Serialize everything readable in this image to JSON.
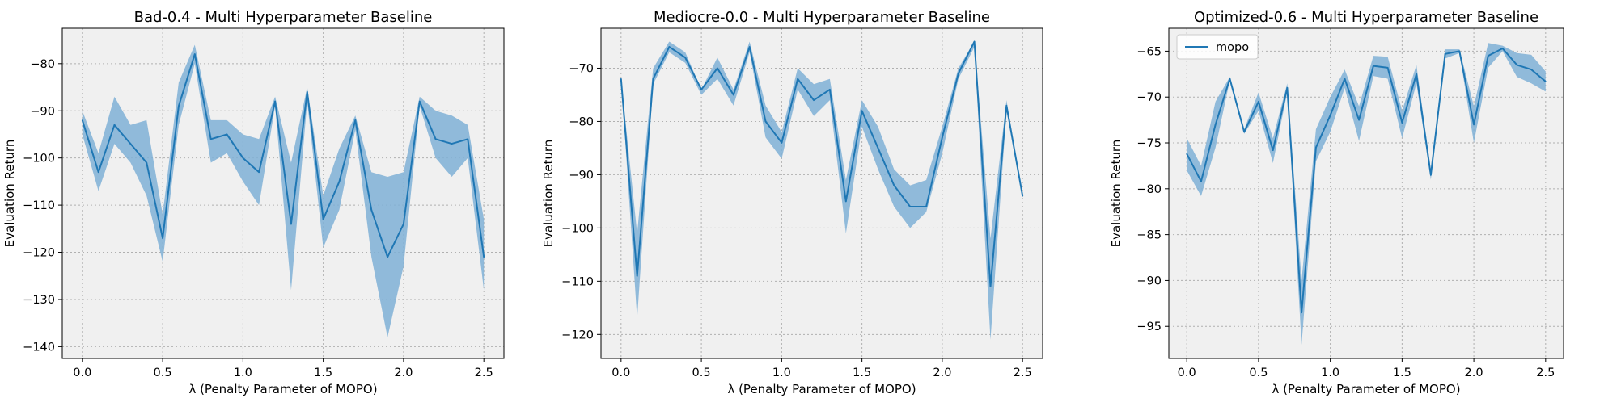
{
  "colors": {
    "line": "#1f77b4",
    "band": "#7fb0d6",
    "panel_bg": "#f0f0f0",
    "grid": "#b0b0b0"
  },
  "legend": {
    "label": "mopo",
    "location": "upper-left",
    "panel": 2
  },
  "chart_data": [
    {
      "type": "line",
      "title": "Bad-0.4 - Multi Hyperparameter Baseline",
      "xlabel": "λ (Penalty Parameter of MOPO)",
      "ylabel": "Evaluation Return",
      "xlim": [
        -0.125,
        2.625
      ],
      "ylim": [
        -142.5,
        -72.5
      ],
      "xticks": [
        "0.0",
        "0.5",
        "1.0",
        "1.5",
        "2.0",
        "2.5"
      ],
      "yticks": [
        -80,
        -90,
        -100,
        -110,
        -120,
        -130,
        -140
      ],
      "grid": true,
      "series": [
        {
          "name": "mopo",
          "x": [
            0.0,
            0.1,
            0.2,
            0.3,
            0.4,
            0.5,
            0.6,
            0.7,
            0.8,
            0.9,
            1.0,
            1.1,
            1.2,
            1.3,
            1.4,
            1.5,
            1.6,
            1.7,
            1.8,
            1.9,
            2.0,
            2.1,
            2.2,
            2.3,
            2.4,
            2.5
          ],
          "y": [
            -92,
            -103,
            -93,
            -97,
            -101,
            -117,
            -89,
            -78,
            -96,
            -95,
            -100,
            -103,
            -88,
            -114,
            -86,
            -113,
            -105,
            -92,
            -111,
            -121,
            -114,
            -88,
            -96,
            -97,
            -96,
            -121
          ],
          "y_upper": [
            -90,
            -99,
            -87,
            -93,
            -92,
            -112,
            -84,
            -76,
            -92,
            -92,
            -95,
            -96,
            -87,
            -101,
            -85,
            -108,
            -98,
            -91,
            -103,
            -104,
            -103,
            -87,
            -90,
            -91,
            -93,
            -113
          ],
          "y_lower": [
            -95,
            -107,
            -97,
            -101,
            -108,
            -122,
            -93,
            -80,
            -101,
            -99,
            -105,
            -110,
            -89,
            -128,
            -88,
            -119,
            -111,
            -94,
            -121,
            -138,
            -123,
            -89,
            -100,
            -104,
            -100,
            -128
          ]
        }
      ]
    },
    {
      "type": "line",
      "title": "Mediocre-0.0 - Multi Hyperparameter Baseline",
      "xlabel": "λ (Penalty Parameter of MOPO)",
      "ylabel": "Evaluation Return",
      "xlim": [
        -0.125,
        2.625
      ],
      "ylim": [
        -124.5,
        -62.5
      ],
      "xticks": [
        "0.0",
        "0.5",
        "1.0",
        "1.5",
        "2.0",
        "2.5"
      ],
      "yticks": [
        -70,
        -80,
        -90,
        -100,
        -110,
        -120
      ],
      "grid": true,
      "series": [
        {
          "name": "mopo",
          "x": [
            0.0,
            0.1,
            0.2,
            0.3,
            0.4,
            0.5,
            0.6,
            0.7,
            0.8,
            0.9,
            1.0,
            1.1,
            1.2,
            1.3,
            1.4,
            1.5,
            1.6,
            1.7,
            1.8,
            1.9,
            2.0,
            2.1,
            2.2,
            2.3,
            2.4,
            2.5
          ],
          "y": [
            -72,
            -109,
            -72,
            -66,
            -68,
            -74,
            -70,
            -75,
            -66,
            -80,
            -84,
            -72,
            -76,
            -74,
            -95,
            -78,
            -85,
            -92,
            -96,
            -96,
            -83,
            -71,
            -65,
            -111,
            -77,
            -94
          ],
          "y_upper": [
            -72,
            -101,
            -70,
            -65,
            -67,
            -74,
            -68,
            -74,
            -65,
            -77,
            -82,
            -70,
            -73,
            -72,
            -91,
            -76,
            -81,
            -89,
            -92,
            -91,
            -81,
            -70,
            -65,
            -102,
            -76,
            -94
          ],
          "y_lower": [
            -72,
            -117,
            -73,
            -67,
            -69,
            -75,
            -72,
            -77,
            -67,
            -83,
            -87,
            -74,
            -79,
            -76,
            -101,
            -81,
            -89,
            -96,
            -100,
            -97,
            -86,
            -72,
            -66,
            -121,
            -78,
            -94
          ]
        }
      ]
    },
    {
      "type": "line",
      "title": "Optimized-0.6 - Multi Hyperparameter Baseline",
      "xlabel": "λ (Penalty Parameter of MOPO)",
      "ylabel": "Evaluation Return",
      "xlim": [
        -0.125,
        2.625
      ],
      "ylim": [
        -98.5,
        -62.5
      ],
      "xticks": [
        "0.0",
        "0.5",
        "1.0",
        "1.5",
        "2.0",
        "2.5"
      ],
      "yticks": [
        -65,
        -70,
        -75,
        -80,
        -85,
        -90,
        -95
      ],
      "grid": true,
      "series": [
        {
          "name": "mopo",
          "x": [
            0.0,
            0.1,
            0.2,
            0.3,
            0.4,
            0.5,
            0.6,
            0.7,
            0.8,
            0.9,
            1.0,
            1.1,
            1.2,
            1.3,
            1.4,
            1.5,
            1.6,
            1.7,
            1.8,
            1.9,
            2.0,
            2.1,
            2.2,
            2.3,
            2.4,
            2.5
          ],
          "y": [
            -76.2,
            -79.2,
            -73.0,
            -68.0,
            -73.8,
            -70.5,
            -75.8,
            -69.0,
            -93.5,
            -75.5,
            -72.0,
            -68.0,
            -72.5,
            -66.6,
            -66.8,
            -72.8,
            -67.5,
            -78.5,
            -65.3,
            -65.0,
            -73.0,
            -65.5,
            -64.7,
            -66.5,
            -67.0,
            -68.3
          ],
          "y_upper": [
            -74.5,
            -77.5,
            -70.5,
            -67.8,
            -73.5,
            -69.5,
            -74.5,
            -68.5,
            -90.0,
            -73.5,
            -70.0,
            -67.0,
            -71.0,
            -65.5,
            -65.6,
            -71.5,
            -66.5,
            -78.0,
            -64.8,
            -64.8,
            -71.0,
            -64.1,
            -64.4,
            -65.2,
            -65.4,
            -67.2
          ],
          "y_lower": [
            -78.0,
            -80.8,
            -75.5,
            -68.2,
            -74.0,
            -71.5,
            -77.2,
            -69.5,
            -97.0,
            -77.0,
            -73.8,
            -69.0,
            -74.8,
            -67.7,
            -68.0,
            -74.5,
            -68.5,
            -79.0,
            -65.8,
            -65.2,
            -75.0,
            -66.8,
            -65.0,
            -67.8,
            -68.5,
            -69.4
          ]
        }
      ]
    }
  ]
}
